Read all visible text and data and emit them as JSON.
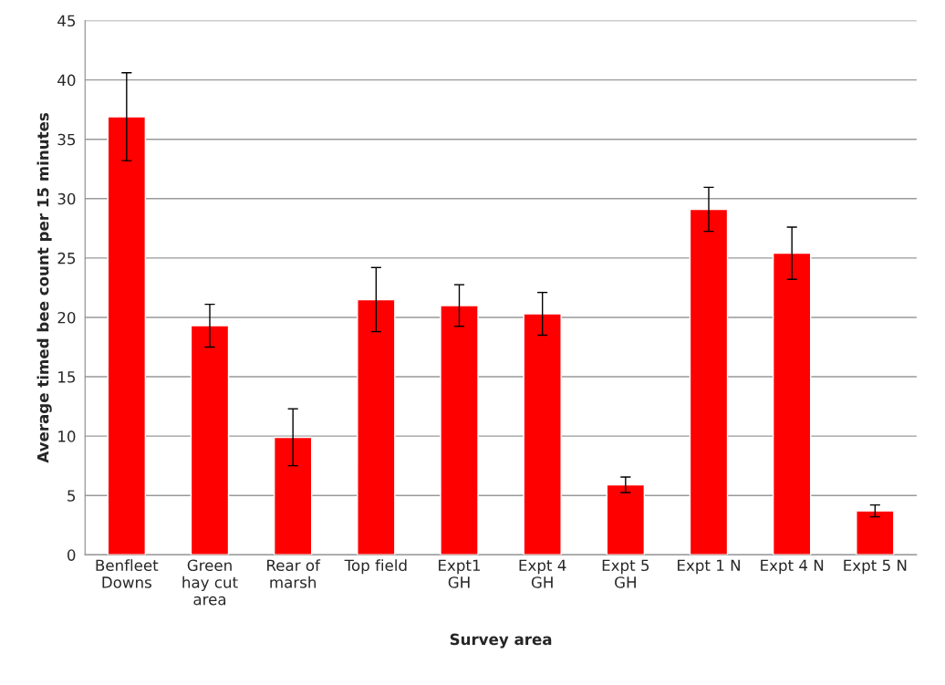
{
  "chart_data": {
    "type": "bar",
    "xlabel": "Survey area",
    "ylabel": "Average timed bee count per 15 minutes",
    "categories": [
      "Benfleet\nDowns",
      "Green\nhay cut\narea",
      "Rear of\nmarsh",
      "Top field",
      "Expt1\nGH",
      "Expt 4\nGH",
      "Expt 5\nGH",
      "Expt 1 N",
      "Expt 4 N",
      "Expt 5 N"
    ],
    "values": [
      36.9,
      19.3,
      9.9,
      21.5,
      21.0,
      20.3,
      5.9,
      29.1,
      25.4,
      3.7
    ],
    "errors": [
      3.7,
      1.8,
      2.4,
      2.7,
      1.75,
      1.8,
      0.65,
      1.85,
      2.2,
      0.5
    ],
    "color": "#ff0000",
    "ylim": [
      0,
      45
    ],
    "yticks": [
      0,
      5,
      10,
      15,
      20,
      25,
      30,
      35,
      40,
      45
    ],
    "grid": "y"
  }
}
